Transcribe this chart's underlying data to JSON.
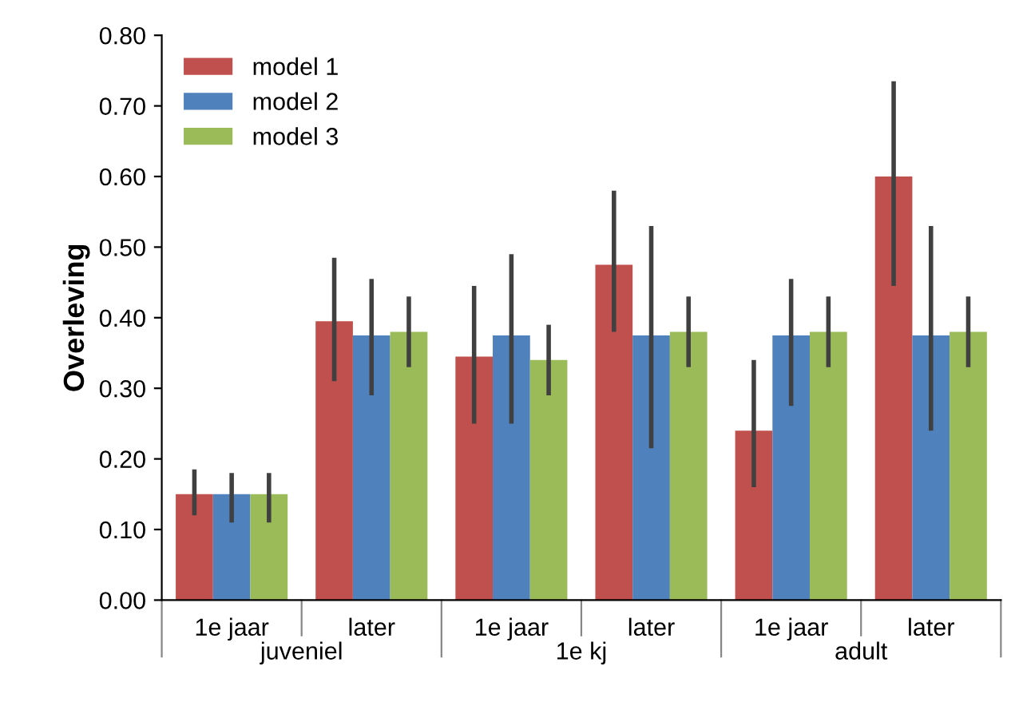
{
  "chart_data": {
    "type": "bar",
    "ylabel": "Overleving",
    "categories": [
      "1e jaar",
      "later",
      "1e jaar",
      "later",
      "1e jaar",
      "later"
    ],
    "annotations": [
      "juveniel",
      "1e kj",
      "adult"
    ],
    "series": [
      {
        "name": "model 1",
        "color": "#c0504d",
        "values": [
          0.15,
          0.395,
          0.345,
          0.475,
          0.24,
          0.6
        ],
        "errors": [
          [
            0.12,
            0.185
          ],
          [
            0.31,
            0.485
          ],
          [
            0.25,
            0.445
          ],
          [
            0.38,
            0.58
          ],
          [
            0.16,
            0.34
          ],
          [
            0.445,
            0.735
          ]
        ]
      },
      {
        "name": "model 2",
        "color": "#4f81bd",
        "values": [
          0.15,
          0.375,
          0.375,
          0.375,
          0.375,
          0.375
        ],
        "errors": [
          [
            0.11,
            0.18
          ],
          [
            0.29,
            0.455
          ],
          [
            0.25,
            0.49
          ],
          [
            0.215,
            0.53
          ],
          [
            0.275,
            0.455
          ],
          [
            0.24,
            0.53
          ]
        ]
      },
      {
        "name": "model 3",
        "color": "#9bbb59",
        "values": [
          0.15,
          0.38,
          0.34,
          0.38,
          0.38,
          0.38
        ],
        "errors": [
          [
            0.11,
            0.18
          ],
          [
            0.33,
            0.43
          ],
          [
            0.29,
            0.39
          ],
          [
            0.33,
            0.43
          ],
          [
            0.33,
            0.43
          ],
          [
            0.33,
            0.43
          ]
        ]
      }
    ],
    "ylim": [
      0,
      0.8
    ],
    "yticks": [
      {
        "value": 0,
        "label": "0.00"
      },
      {
        "value": 0.1,
        "label": "0.10"
      },
      {
        "value": 0.2,
        "label": "0.20"
      },
      {
        "value": 0.3,
        "label": "0.30"
      },
      {
        "value": 0.4,
        "label": "0.40"
      },
      {
        "value": 0.5,
        "label": "0.50"
      },
      {
        "value": 0.6,
        "label": "0.60"
      },
      {
        "value": 0.7,
        "label": "0.70"
      },
      {
        "value": 0.8,
        "label": "0.80"
      }
    ],
    "grid": false,
    "legend": "top left"
  }
}
